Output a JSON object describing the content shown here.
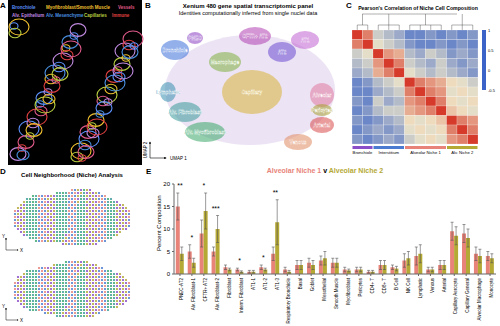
{
  "chart_data": [
    {
      "type": "heatmap",
      "title": "Pearson's Correlation of Niche Cell Composition",
      "tick_labels": false,
      "groups": [
        {
          "label": "Bronchiole",
          "size": 2,
          "color": "#8a4fc8"
        },
        {
          "label": "Interstitium",
          "size": 3,
          "color": "#4a7bd0"
        },
        {
          "label": "Alveolar Niche 1",
          "size": 4,
          "color": "#e8837a"
        },
        {
          "label": "Alv. Niche 2",
          "size": 3,
          "color": "#b5a936"
        }
      ],
      "cells": [
        [
          1,
          0.7,
          0.1,
          0.0,
          -0.1,
          -0.3,
          -0.3,
          -0.2,
          -0.3,
          -0.2,
          -0.3,
          -0.2
        ],
        [
          0.7,
          1,
          0.2,
          0.1,
          0.0,
          -0.2,
          -0.3,
          -0.3,
          -0.2,
          -0.3,
          -0.2,
          -0.3
        ],
        [
          0.1,
          0.2,
          1,
          0.6,
          0.5,
          0.0,
          -0.1,
          0.1,
          0.0,
          -0.2,
          -0.1,
          -0.2
        ],
        [
          0.0,
          0.1,
          0.6,
          1,
          0.7,
          0.1,
          0.0,
          -0.1,
          0.1,
          -0.1,
          -0.2,
          -0.1
        ],
        [
          -0.1,
          0.0,
          0.5,
          0.7,
          1,
          0.2,
          0.1,
          0.0,
          0.1,
          0.0,
          -0.1,
          -0.2
        ],
        [
          -0.3,
          -0.2,
          0.0,
          0.1,
          0.2,
          1,
          0.7,
          0.6,
          0.5,
          0.3,
          0.2,
          0.1
        ],
        [
          -0.3,
          -0.3,
          -0.1,
          0.0,
          0.1,
          0.7,
          1,
          0.7,
          0.6,
          0.2,
          0.3,
          0.2
        ],
        [
          -0.2,
          -0.3,
          0.1,
          -0.1,
          0.0,
          0.6,
          0.7,
          1,
          0.7,
          0.3,
          0.2,
          0.3
        ],
        [
          -0.3,
          -0.2,
          0.0,
          0.1,
          0.1,
          0.5,
          0.6,
          0.7,
          1,
          0.4,
          0.3,
          0.2
        ],
        [
          -0.2,
          -0.3,
          -0.2,
          -0.1,
          0.0,
          0.3,
          0.2,
          0.3,
          0.4,
          1,
          0.7,
          0.6
        ],
        [
          -0.3,
          -0.2,
          -0.1,
          -0.2,
          -0.1,
          0.2,
          0.3,
          0.2,
          0.3,
          0.7,
          1,
          0.7
        ],
        [
          -0.2,
          -0.3,
          -0.2,
          -0.1,
          -0.2,
          0.1,
          0.2,
          0.3,
          0.2,
          0.6,
          0.7,
          1
        ]
      ],
      "color_range": [
        -0.5,
        1
      ],
      "color_ticks": [
        -0.5,
        0,
        0.5,
        1
      ]
    },
    {
      "type": "bar",
      "title": "Alveolar Niche 1 v Alveolar Niche 2",
      "y_label": "Percent Composition",
      "categories": [
        "PNEC-AT2",
        "Alv. Fibroblast-1",
        "CFTR+ AT2",
        "Alv. Fibroblast-2",
        "Fibroblast",
        "Interm. Fibroblast",
        "AT1-1",
        "AT1-2",
        "AT1-3",
        "Respiratory Bronchiole",
        "Basal",
        "Goblet",
        "Mesothelial",
        "Smooth Muscle",
        "Myofibroblast",
        "Pericytes",
        "CD4+ T",
        "CD8+ T",
        "B Cell",
        "NK Cell",
        "Lymphatic",
        "Venous",
        "Arterial",
        "Capillary Aerocyte",
        "Capillary General",
        "Alveolar Macrophage",
        "Monocyte"
      ],
      "series": [
        {
          "name": "Alveolar Niche 1",
          "color": "#e8837a",
          "values": [
            15,
            5,
            9,
            5,
            1.5,
            1,
            0.5,
            1.5,
            4.5,
            1,
            2,
            2.5,
            3,
            2.5,
            1,
            1,
            0.5,
            2,
            1.5,
            3,
            4,
            1,
            2,
            9.5,
            9,
            4.5,
            4
          ],
          "errors": [
            3,
            1.5,
            3,
            1,
            0.5,
            0.3,
            0.3,
            0.5,
            1.5,
            0.5,
            1,
            1,
            1,
            1,
            0.5,
            0.5,
            0.3,
            1,
            0.5,
            1.5,
            2,
            0.5,
            1,
            2,
            2,
            1.5,
            1
          ]
        },
        {
          "name": "Alveolar Niche 2",
          "color": "#b5a936",
          "values": [
            4.5,
            2.5,
            14,
            10,
            1,
            0.5,
            0.5,
            1,
            11.5,
            0.5,
            2,
            2,
            3.5,
            2.5,
            0.8,
            1,
            0.5,
            2,
            1.2,
            3.5,
            4.5,
            1,
            2,
            8.5,
            8,
            4,
            3.5
          ],
          "errors": [
            1.5,
            1,
            4,
            3,
            0.3,
            0.2,
            0.3,
            0.3,
            5,
            0.3,
            1,
            1,
            1.5,
            1,
            0.3,
            0.5,
            0.3,
            1,
            0.5,
            1.5,
            2,
            0.5,
            1,
            2,
            2,
            1.5,
            1
          ]
        }
      ],
      "significance": [
        "**",
        "*",
        "*",
        "***",
        null,
        "*",
        null,
        "*",
        "**",
        null,
        null,
        null,
        null,
        null,
        null,
        null,
        null,
        null,
        null,
        null,
        null,
        null,
        null,
        null,
        null,
        null,
        null
      ],
      "ylim": [
        0,
        20
      ],
      "yticks": [
        0,
        5,
        10,
        15,
        20
      ],
      "grid": false
    }
  ],
  "panels": {
    "A": {
      "label": "A",
      "legend": [
        {
          "text": "Bronchiole",
          "color": "#5b8ff9"
        },
        {
          "text": "Myofibroblast/Smooth Muscle",
          "color": "#f0c030"
        },
        {
          "text": "Vessels",
          "color": "#e05a8a"
        },
        {
          "text": "Alv. Epithelium",
          "color": "#c08ae0"
        },
        {
          "text": "Alv. Mesenchyme",
          "color": "#4a90e0"
        },
        {
          "text": "Capillaries",
          "color": "#b8d040"
        },
        {
          "text": "Immune",
          "color": "#e04040"
        }
      ]
    },
    "B": {
      "label": "B",
      "title": "Xenium 480 gene spatial transcriptomic panel",
      "subtitle": "Identities computationally inferred from single nuclei data",
      "x_label": "UMAP 1",
      "y_label": "UMAP 2",
      "clusters": [
        {
          "text": "Bronchiole",
          "color": "#3a6fd8"
        },
        {
          "text": "PNEC",
          "color": "#8a3fc2"
        },
        {
          "text": "CFTR+ AT2",
          "color": "#b040b0"
        },
        {
          "text": "AT2",
          "color": "#6a4bd0"
        },
        {
          "text": "AT1",
          "color": "#c060d0"
        },
        {
          "text": "Alveolar",
          "color": "#e07aa0"
        },
        {
          "text": "Arterial",
          "color": "#d94b4b"
        },
        {
          "text": "Venous",
          "color": "#e08a60"
        },
        {
          "text": "Capillary",
          "color": "#d8b43a"
        },
        {
          "text": "Pericytes",
          "color": "#a8a030"
        },
        {
          "text": "Alv. Myofibroblast",
          "color": "#3aa86a"
        },
        {
          "text": "Alv. Fibroblast",
          "color": "#3a9a9a"
        },
        {
          "text": "Lymphatic",
          "color": "#3a8fb0"
        },
        {
          "text": "Macrophage",
          "color": "#7fb040"
        }
      ]
    },
    "C": {
      "label": "C"
    },
    "D": {
      "label": "D",
      "title": "Cell Neighborhood (Niche) Analysis",
      "x_label": "X",
      "y_label": "Y"
    },
    "E": {
      "label": "E"
    }
  }
}
